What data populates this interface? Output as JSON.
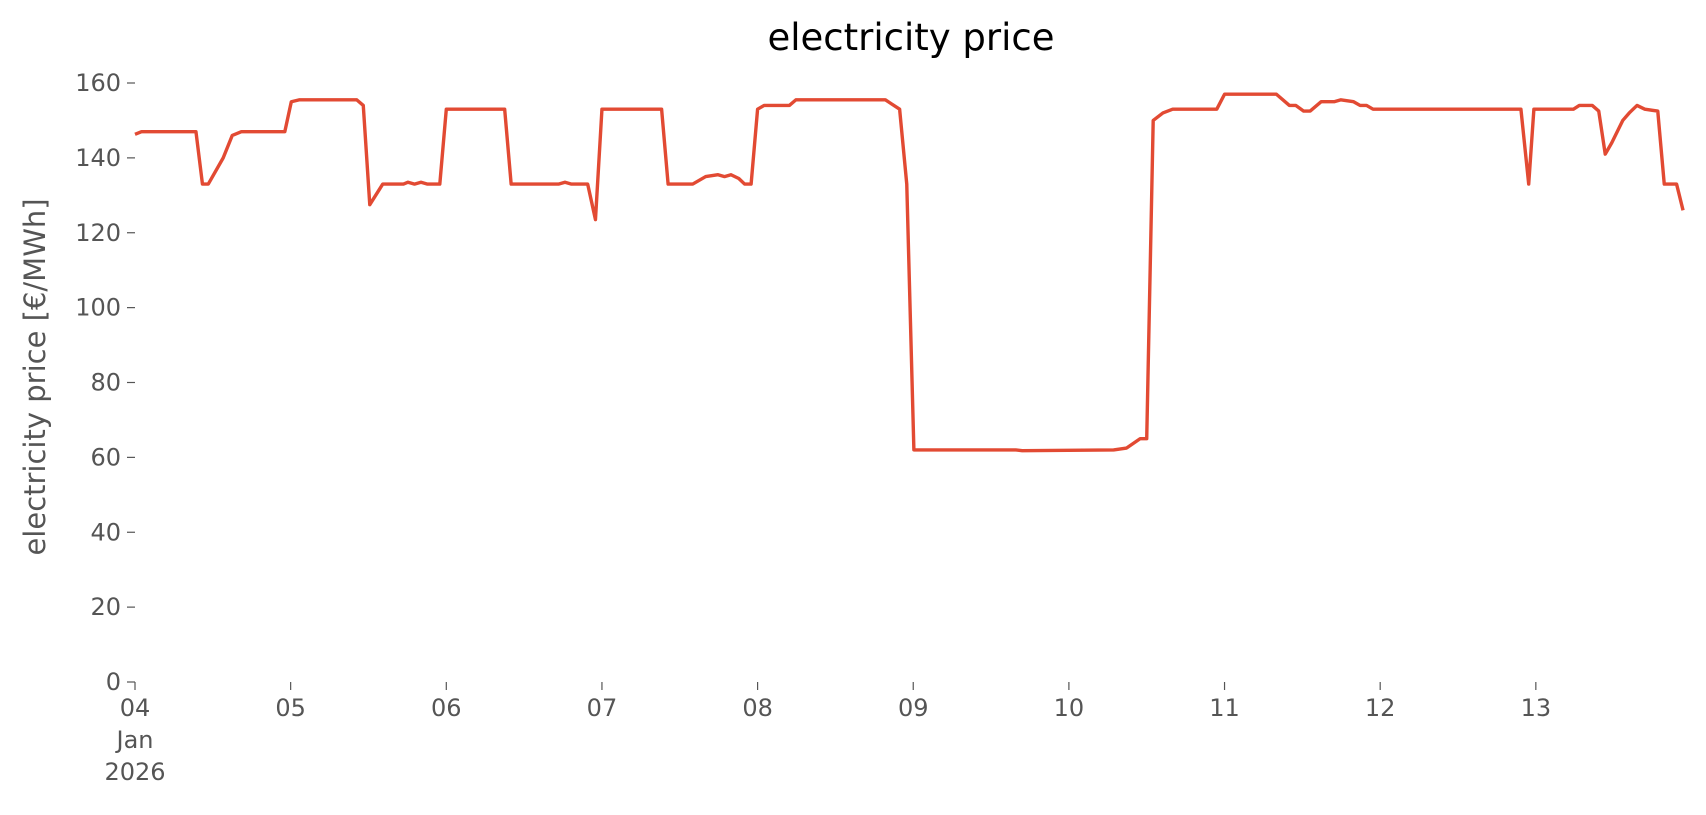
{
  "chart_data": {
    "type": "line",
    "title": "electricity price",
    "y_label": "electricity price [€/MWh]",
    "x": [
      0,
      1,
      9.4,
      10.4,
      11.3,
      13.6,
      15,
      16.4,
      23.1,
      24.1,
      25.3,
      34.2,
      35.2,
      36.2,
      38.2,
      41.4,
      42.1,
      43.1,
      44.1,
      45.1,
      47,
      48,
      57,
      58,
      65.3,
      66.3,
      67.3,
      69.8,
      71,
      72,
      81.2,
      82.2,
      86,
      88,
      89.9,
      90.9,
      91.9,
      93.1,
      94,
      95,
      96,
      97,
      100.9,
      101.9,
      115.7,
      117.9,
      119,
      120.1,
      135.8,
      136.8,
      150.9,
      152.9,
      155,
      156,
      157,
      158.5,
      160,
      166.8,
      168,
      176,
      178,
      179,
      180.2,
      181.2,
      182.9,
      184.9,
      185.9,
      187.9,
      188.9,
      189.9,
      190.9,
      213.7,
      214.9,
      215.7,
      221.8,
      222.7,
      224.7,
      225.7,
      226.7,
      227.7,
      229.4,
      230.4,
      231.6,
      232.8,
      234.8,
      235.8,
      237.7,
      238.7
    ],
    "series": [
      {
        "name": "electricity price",
        "color": "#E24A33",
        "values": [
          146.3,
          147,
          147,
          133,
          133,
          140,
          146,
          147,
          147,
          155,
          155.5,
          155.5,
          154,
          127.5,
          133,
          133,
          133.5,
          133,
          133.5,
          133,
          133,
          153,
          153,
          133,
          133,
          133.5,
          133,
          133,
          123.5,
          153,
          153,
          133,
          133,
          135,
          135.5,
          135,
          135.5,
          134.5,
          133,
          133,
          153,
          154,
          154,
          155.5,
          155.5,
          153,
          133,
          62,
          62,
          61.8,
          62,
          62.5,
          65,
          65,
          150,
          152,
          153,
          153,
          157,
          157,
          154,
          154,
          152.5,
          152.5,
          155,
          155,
          155.5,
          155,
          154,
          154,
          153,
          153,
          133,
          153,
          153,
          154,
          154,
          152.5,
          141,
          144,
          150,
          152,
          154,
          153,
          152.5,
          133,
          133,
          126
        ]
      }
    ],
    "xlim": [
      0,
      239
    ],
    "xticks": [
      {
        "value": 0,
        "label": "04\nJan\n2026"
      },
      {
        "value": 24,
        "label": "05"
      },
      {
        "value": 48,
        "label": "06"
      },
      {
        "value": 72,
        "label": "07"
      },
      {
        "value": 96,
        "label": "08"
      },
      {
        "value": 120,
        "label": "09"
      },
      {
        "value": 144,
        "label": "10"
      },
      {
        "value": 168,
        "label": "11"
      },
      {
        "value": 192,
        "label": "12"
      },
      {
        "value": 216,
        "label": "13"
      }
    ],
    "ylim": [
      0,
      160
    ],
    "yticks": [
      0,
      20,
      40,
      60,
      80,
      100,
      120,
      140,
      160
    ],
    "grid": false
  }
}
